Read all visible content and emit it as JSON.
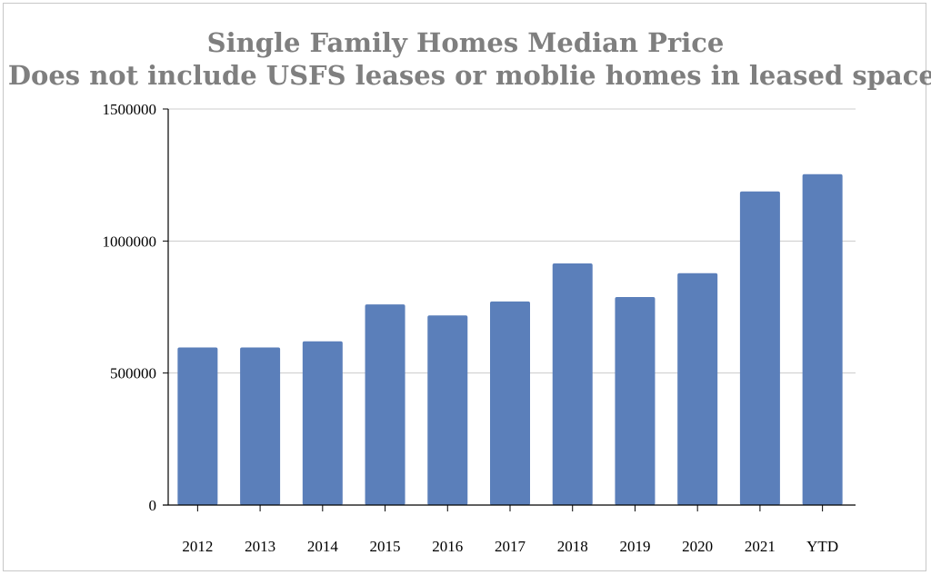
{
  "chart_data": {
    "type": "bar",
    "title_lines": [
      "Single Family Homes Median Price",
      "Does not include USFS leases or moblie homes in leased spaces"
    ],
    "categories": [
      "2012",
      "2013",
      "2014",
      "2015",
      "2016",
      "2017",
      "2018",
      "2019",
      "2020",
      "2021",
      "YTD"
    ],
    "values": [
      597000,
      597000,
      620000,
      760000,
      718000,
      771000,
      915000,
      788000,
      878000,
      1188000,
      1253000
    ],
    "ylim": [
      0,
      1500000
    ],
    "yticks": [
      "0",
      "500000",
      "1000000",
      "1500000"
    ],
    "grid": true,
    "bar_color": "#5b7fba",
    "grid_color": "#cccccc",
    "title_color": "#7f7f7f"
  }
}
